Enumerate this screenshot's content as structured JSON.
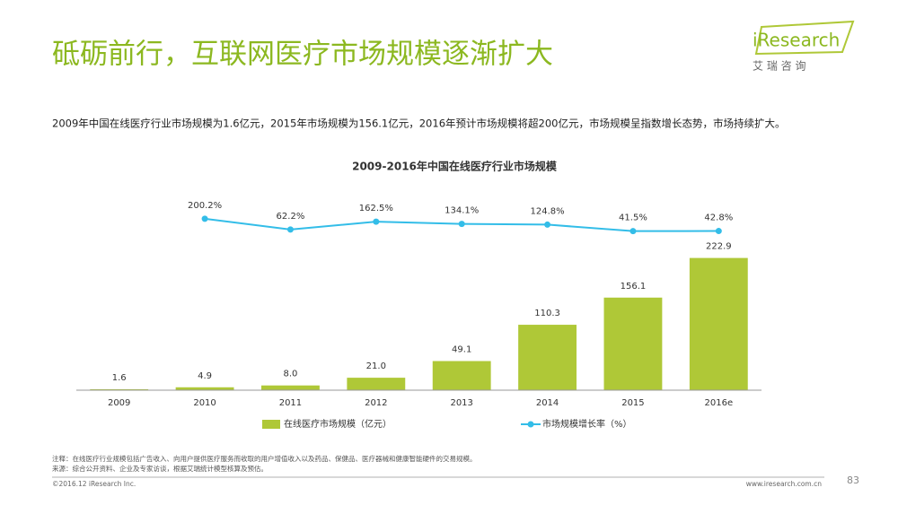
{
  "header": {
    "title": "砥砺前行，互联网医疗市场规模逐渐扩大",
    "logo": "iResearch",
    "logo_sub": "艾 瑞 咨 询"
  },
  "description": "2009年中国在线医疗行业市场规模为1.6亿元，2015年市场规模为156.1亿元，2016年预计市场规模将超200亿元，市场规模呈指数增长态势，市场持续扩大。",
  "chart_data": {
    "type": "bar",
    "title": "2009-2016年中国在线医疗行业市场规模",
    "categories": [
      "2009",
      "2010",
      "2011",
      "2012",
      "2013",
      "2014",
      "2015",
      "2016e"
    ],
    "series": [
      {
        "name": "在线医疗市场规模（亿元）",
        "type": "bar",
        "color": "#afc837",
        "values": [
          1.6,
          4.9,
          8,
          21,
          49.1,
          110.3,
          156.1,
          222.9
        ],
        "value_labels": [
          "1.6",
          "4.9",
          "8.0",
          "21.0",
          "49.1",
          "110.3",
          "156.1",
          "222.9"
        ]
      },
      {
        "name": "市场规模增长率（%）",
        "type": "line",
        "axis": "y2",
        "color": "#33bde8",
        "values": [
          null,
          200.2,
          62.2,
          162.5,
          134.1,
          124.8,
          41.5,
          42.8
        ],
        "value_labels": [
          null,
          "200.2%",
          "62.2%",
          "162.5%",
          "134.1%",
          "124.8%",
          "41.5%",
          "42.8%"
        ]
      }
    ],
    "ylim": [
      0,
      310
    ],
    "y2lim": [
      -2000,
      360
    ],
    "legend": "bottom"
  },
  "footer": {
    "notes": [
      "注释：在线医疗行业规模包括广告收入、向用户提供医疗服务而收取的用户增值收入以及药品、保健品、医疗器械和健康智能硬件的交易规模。",
      "来源：综合公开资料、企业及专家访谈，根据艾瑞统计模型核算及预估。"
    ],
    "copyright": "©2016.12 iResearch Inc.",
    "website": "www.iresearch.com.cn",
    "page": 83
  }
}
